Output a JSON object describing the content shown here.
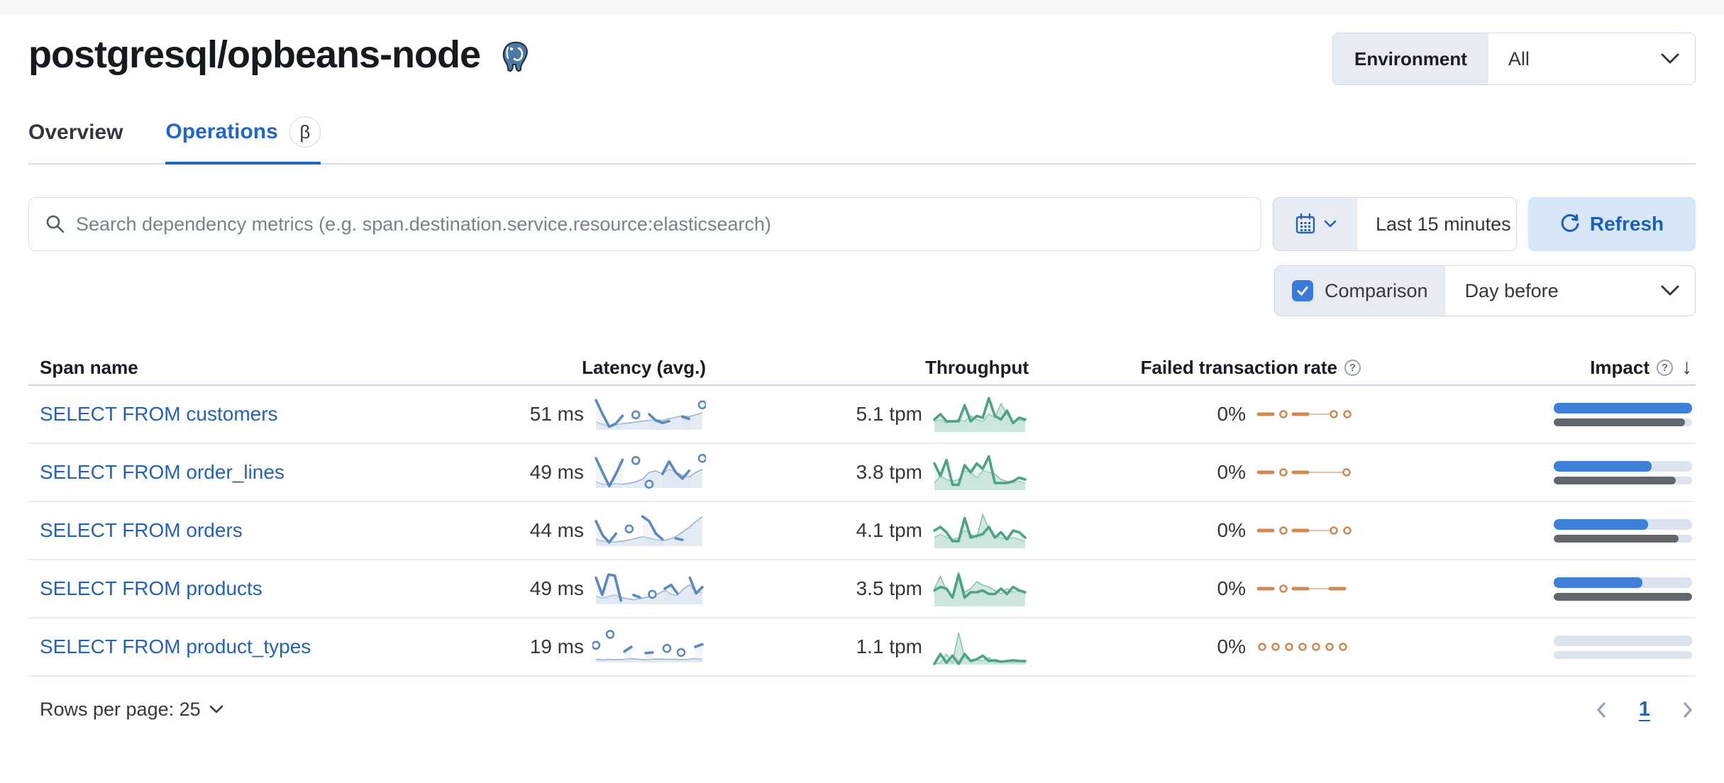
{
  "header": {
    "title": "postgresql/opbeans-node",
    "env_label": "Environment",
    "env_value": "All"
  },
  "tabs": [
    {
      "label": "Overview",
      "active": false
    },
    {
      "label": "Operations",
      "active": true,
      "beta_badge": "β"
    }
  ],
  "toolbar": {
    "search_placeholder": "Search dependency metrics (e.g. span.destination.service.resource:elasticsearch)",
    "time_range": "Last 15 minutes",
    "refresh_label": "Refresh",
    "comparison_label": "Comparison",
    "comparison_checked": true,
    "comparison_value": "Day before"
  },
  "table": {
    "columns": [
      "Span name",
      "Latency (avg.)",
      "Throughput",
      "Failed transaction rate",
      "Impact"
    ],
    "rows": [
      {
        "name": "SELECT FROM customers",
        "latency": "51 ms",
        "throughput": "5.1 tpm",
        "failed_rate": "0%",
        "impact": {
          "current_pct": 100,
          "previous_pct": 95
        },
        "latency_spark": {
          "points": [
            0.95,
            0.5,
            0.1,
            0.2,
            0.45,
            null,
            0.48,
            null,
            0.5,
            0.3,
            0.22,
            0.28,
            null,
            0.42,
            0.35,
            null,
            0.8
          ],
          "prev": [
            0.25,
            0.18,
            0.12,
            0.15,
            0.2,
            0.22,
            0.25,
            0.28,
            0.3,
            0.33,
            0.3,
            0.36,
            0.4,
            0.45,
            0.42,
            0.48,
            0.55
          ]
        },
        "throughput_spark": {
          "points": [
            0.35,
            0.5,
            0.3,
            0.3,
            0.3,
            0.75,
            0.3,
            0.45,
            0.4,
            0.95,
            0.45,
            0.35,
            0.6,
            0.25,
            0.4,
            0.35
          ],
          "prev": [
            0.3,
            0.35,
            0.25,
            0.3,
            0.35,
            0.3,
            0.45,
            0.35,
            0.3,
            0.5,
            0.4,
            0.8,
            0.5,
            0.3,
            0.35,
            0.3
          ]
        },
        "failed_spark": {
          "tokens": [
            "dash",
            "dot",
            "dash",
            "thin",
            "dot",
            "dot"
          ]
        }
      },
      {
        "name": "SELECT FROM order_lines",
        "latency": "49 ms",
        "throughput": "3.8 tpm",
        "failed_rate": "0%",
        "impact": {
          "current_pct": 71,
          "previous_pct": 88
        },
        "latency_spark": {
          "points": [
            0.95,
            0.5,
            0.06,
            0.45,
            0.9,
            null,
            0.88,
            null,
            0.12,
            null,
            0.45,
            0.85,
            0.5,
            0.3,
            0.55,
            null,
            0.95
          ],
          "prev": [
            0.2,
            0.12,
            0.1,
            0.14,
            0.12,
            0.15,
            0.2,
            0.28,
            0.5,
            0.55,
            0.45,
            0.6,
            0.52,
            0.4,
            0.35,
            0.5,
            0.6
          ]
        },
        "throughput_spark": {
          "points": [
            0.75,
            0.4,
            0.85,
            0.15,
            0.15,
            0.7,
            0.5,
            0.75,
            0.6,
            0.95,
            0.2,
            0.2,
            0.2,
            0.25,
            0.35,
            0.3
          ],
          "prev": [
            0.2,
            0.4,
            0.3,
            0.25,
            0.3,
            0.55,
            0.5,
            0.35,
            0.55,
            0.5,
            0.45,
            0.3,
            0.25,
            0.2,
            0.25,
            0.2
          ]
        },
        "failed_spark": {
          "tokens": [
            "dash",
            "dot",
            "dash",
            "thinlong",
            "dot"
          ]
        }
      },
      {
        "name": "SELECT FROM orders",
        "latency": "44 ms",
        "throughput": "4.1 tpm",
        "failed_rate": "0%",
        "impact": {
          "current_pct": 68,
          "previous_pct": 90
        },
        "latency_spark": {
          "points": [
            0.8,
            0.35,
            0.12,
            0.4,
            null,
            0.55,
            null,
            0.95,
            0.8,
            0.4,
            0.22,
            null,
            0.25,
            0.2,
            null,
            null,
            null
          ],
          "prev": [
            0.22,
            0.16,
            0.12,
            0.14,
            0.16,
            0.2,
            0.25,
            0.3,
            0.26,
            0.2,
            0.18,
            0.22,
            0.3,
            0.45,
            0.6,
            0.78,
            0.95
          ]
        },
        "throughput_spark": {
          "points": [
            0.5,
            0.6,
            0.45,
            0.2,
            0.2,
            0.85,
            0.3,
            0.35,
            0.4,
            0.6,
            0.3,
            0.45,
            0.25,
            0.5,
            0.45,
            0.3
          ],
          "prev": [
            0.3,
            0.4,
            0.3,
            0.25,
            0.3,
            0.5,
            0.4,
            0.3,
            0.95,
            0.55,
            0.35,
            0.3,
            0.25,
            0.3,
            0.25,
            0.2
          ]
        },
        "failed_spark": {
          "tokens": [
            "dash",
            "dot",
            "dash",
            "thin",
            "dot",
            "dot"
          ]
        }
      },
      {
        "name": "SELECT FROM products",
        "latency": "49 ms",
        "throughput": "3.5 tpm",
        "failed_rate": "0%",
        "impact": {
          "current_pct": 64,
          "previous_pct": 100
        },
        "latency_spark": {
          "points": [
            0.85,
            0.3,
            0.95,
            0.92,
            0.12,
            null,
            0.3,
            0.22,
            null,
            0.32,
            null,
            0.5,
            0.62,
            0.35,
            null,
            0.85,
            0.35,
            0.55
          ],
          "prev": [
            0.25,
            0.2,
            0.25,
            0.3,
            0.22,
            0.18,
            0.15,
            0.18,
            0.22,
            0.28,
            0.34,
            0.45,
            0.32,
            0.28,
            0.5,
            0.62,
            0.35,
            0.4
          ]
        },
        "throughput_spark": {
          "points": [
            0.45,
            0.55,
            0.5,
            0.25,
            0.9,
            0.25,
            0.4,
            0.4,
            0.45,
            0.35,
            0.35,
            0.5,
            0.35,
            0.55,
            0.45,
            0.4
          ],
          "prev": [
            0.5,
            0.85,
            0.45,
            0.3,
            0.95,
            0.4,
            0.5,
            0.7,
            0.6,
            0.55,
            0.45,
            0.35,
            0.5,
            0.4,
            0.45,
            0.35
          ]
        },
        "failed_spark": {
          "tokens": [
            "dash",
            "dot",
            "dash",
            "thin",
            "dash"
          ]
        }
      },
      {
        "name": "SELECT FROM product_types",
        "latency": "19 ms",
        "throughput": "1.1 tpm",
        "failed_rate": "0%",
        "impact": {
          "current_pct": 0,
          "previous_pct": 0
        },
        "latency_spark": {
          "points": [
            0.55,
            null,
            0.9,
            null,
            0.35,
            0.5,
            null,
            0.3,
            0.32,
            null,
            0.45,
            null,
            0.32,
            null,
            0.5,
            0.58
          ],
          "prev": [
            0.1,
            0.08,
            0.1,
            0.09,
            0.1,
            0.12,
            0.1,
            0.09,
            0.1,
            0.11,
            0.1,
            0.1,
            0.09,
            0.1,
            0.12,
            0.1
          ]
        },
        "throughput_spark": {
          "points": [
            0.02,
            0.3,
            0.05,
            0.25,
            0.02,
            0.3,
            0.1,
            0.15,
            0.25,
            0.1,
            0.12,
            0.08,
            0.1,
            0.12,
            0.1,
            0.1
          ],
          "prev": [
            0.02,
            0.05,
            0.3,
            0.05,
            0.9,
            0.2,
            0.1,
            0.15,
            0.1,
            0.2,
            0.05,
            0.1,
            0.08,
            0.05,
            0.1,
            0.05
          ]
        },
        "failed_spark": {
          "tokens": [
            "dot",
            "dot",
            "dot",
            "dot",
            "dot",
            "dot",
            "dot"
          ]
        }
      }
    ]
  },
  "footer": {
    "rows_per_page_label": "Rows per page: 25",
    "page": "1"
  },
  "colors": {
    "primary_blue": "#2367c2",
    "link_blue": "#2563b2",
    "refresh_bg": "#d7e7f8",
    "prepend_bg": "#e7ebf3",
    "latency_line": "#5d88bd",
    "latency_prev_fill": "#dbe4f2",
    "throughput_line": "#4ea285",
    "throughput_prev_fill": "#c4e2d4",
    "failed_orange": "#cd8a54",
    "impact_current": "#3e7fd9",
    "impact_previous": "#62676e",
    "impact_track": "#dde3ee"
  }
}
